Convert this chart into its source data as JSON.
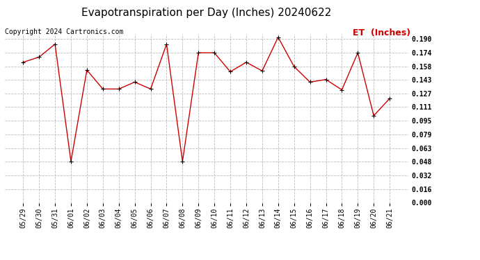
{
  "title": "Evapotranspiration per Day (Inches) 20240622",
  "copyright": "Copyright 2024 Cartronics.com",
  "legend_label": "ET  (Inches)",
  "dates": [
    "05/29",
    "05/30",
    "05/31",
    "06/01",
    "06/02",
    "06/03",
    "06/04",
    "06/05",
    "06/06",
    "06/07",
    "06/08",
    "06/09",
    "06/10",
    "06/11",
    "06/12",
    "06/13",
    "06/14",
    "06/15",
    "06/16",
    "06/17",
    "06/18",
    "06/19",
    "06/20",
    "06/21"
  ],
  "values": [
    0.163,
    0.169,
    0.184,
    0.048,
    0.154,
    0.132,
    0.132,
    0.14,
    0.132,
    0.184,
    0.048,
    0.174,
    0.174,
    0.152,
    0.163,
    0.153,
    0.192,
    0.158,
    0.14,
    0.143,
    0.131,
    0.174,
    0.101,
    0.121
  ],
  "ylim": [
    0.0,
    0.196
  ],
  "yticks": [
    0.0,
    0.016,
    0.032,
    0.048,
    0.063,
    0.079,
    0.095,
    0.111,
    0.127,
    0.143,
    0.158,
    0.174,
    0.19
  ],
  "line_color": "#cc0000",
  "marker_color": "#000000",
  "grid_color": "#bbbbbb",
  "bg_color": "#ffffff",
  "title_fontsize": 11,
  "copyright_fontsize": 7,
  "legend_fontsize": 9,
  "legend_color": "#cc0000",
  "tick_fontsize": 7,
  "ytick_fontsize": 7,
  "xlabel_rotation": 90
}
